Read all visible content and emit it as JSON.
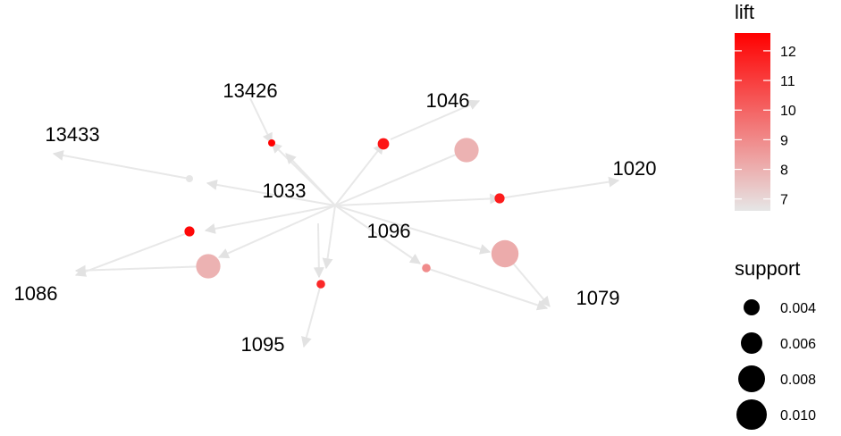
{
  "graph": {
    "item_labels": [
      "13426",
      "1046",
      "13433",
      "1020",
      "1033",
      "1096",
      "1086",
      "1079",
      "1095"
    ],
    "rules": [
      {
        "lift": 6.7,
        "support": 0.004
      },
      {
        "lift": 12.5,
        "support": 0.004
      },
      {
        "lift": 12.0,
        "support": 0.0055
      },
      {
        "lift": 11.8,
        "support": 0.005
      },
      {
        "lift": 12.3,
        "support": 0.005
      },
      {
        "lift": 11.5,
        "support": 0.0045
      },
      {
        "lift": 8.0,
        "support": 0.01
      },
      {
        "lift": 8.0,
        "support": 0.01
      },
      {
        "lift": 8.2,
        "support": 0.011
      },
      {
        "lift": 9.0,
        "support": 0.0045
      }
    ]
  },
  "legend": {
    "lift": {
      "title": "lift",
      "ticks": [
        "12",
        "11",
        "10",
        "9",
        "8",
        "7"
      ],
      "low_color": "#e6e6e6",
      "high_color": "#ff0000"
    },
    "support": {
      "title": "support",
      "ticks": [
        "0.004",
        "0.006",
        "0.008",
        "0.010"
      ]
    }
  },
  "colors": {
    "edge": "#e8e8e8",
    "text": "#000000"
  }
}
